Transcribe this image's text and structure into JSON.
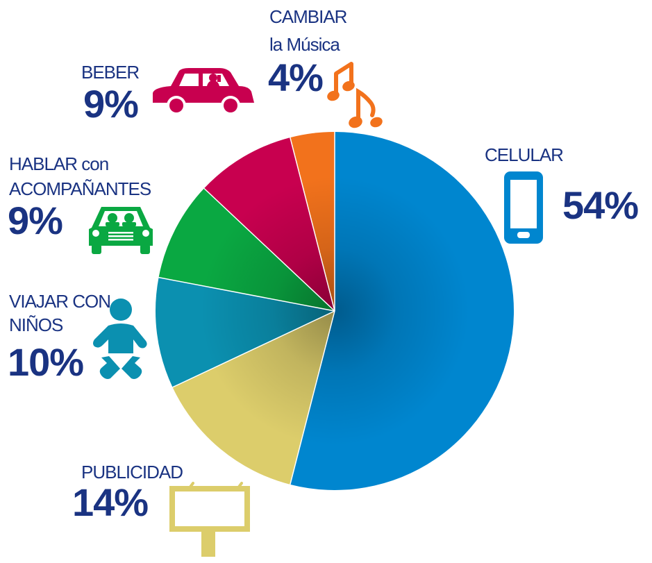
{
  "chart_data": {
    "type": "pie",
    "slices": [
      {
        "key": "celular",
        "label_lines": [
          "CELULAR"
        ],
        "value": 54,
        "value_label": "54%",
        "color": "#0086cf",
        "icon": "smartphone-icon"
      },
      {
        "key": "publicidad",
        "label_lines": [
          "PUBLICIDAD"
        ],
        "value": 14,
        "value_label": "14%",
        "color": "#dccd6b",
        "icon": "billboard-icon"
      },
      {
        "key": "ninos",
        "label_lines": [
          "VIAJAR CON",
          "NIÑOS"
        ],
        "value": 10,
        "value_label": "10%",
        "color": "#0b90b0",
        "icon": "baby-icon"
      },
      {
        "key": "hablar",
        "label_lines": [
          "HABLAR con",
          "ACOMPAÑANTES"
        ],
        "value": 9,
        "value_label": "9%",
        "color": "#0aa842",
        "icon": "car-passengers-icon"
      },
      {
        "key": "beber",
        "label_lines": [
          "BEBER"
        ],
        "value": 9,
        "value_label": "9%",
        "color": "#c8004f",
        "icon": "car-drinking-icon"
      },
      {
        "key": "musica",
        "label_lines": [
          "CAMBIAR",
          "la Música"
        ],
        "value": 4,
        "value_label": "4%",
        "color": "#f2721c",
        "icon": "music-notes-icon"
      }
    ],
    "start_angle_deg": 0,
    "direction": "clockwise",
    "legend": "none",
    "text_color": "#1a3382"
  }
}
